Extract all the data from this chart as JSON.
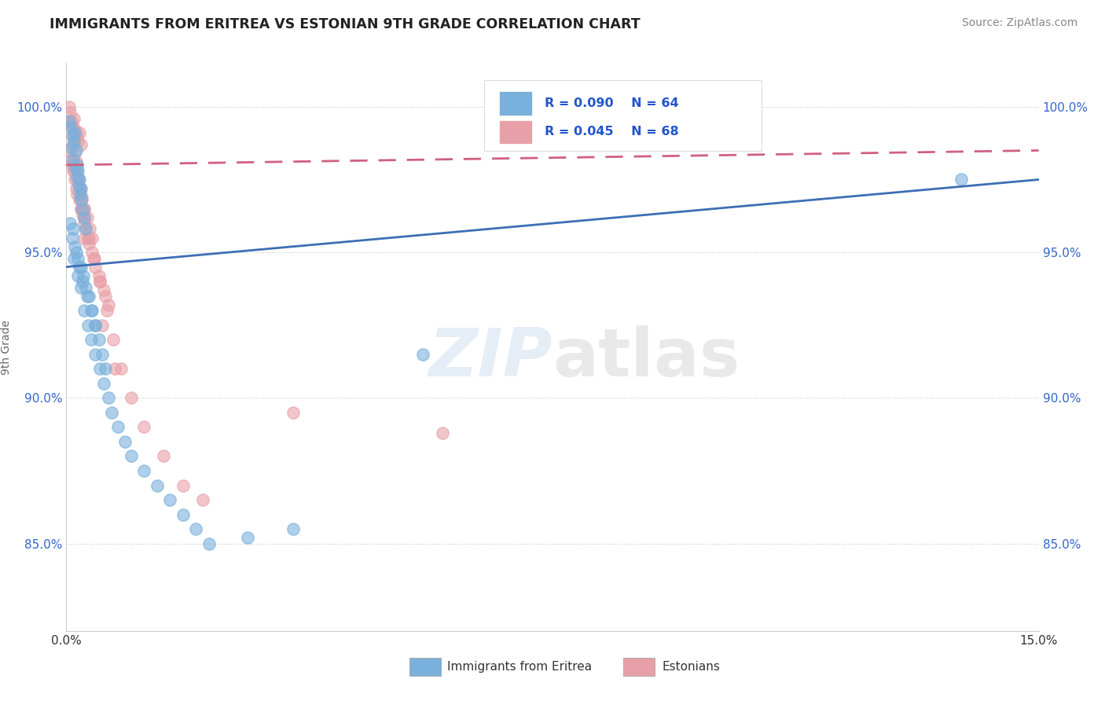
{
  "title": "IMMIGRANTS FROM ERITREA VS ESTONIAN 9TH GRADE CORRELATION CHART",
  "source": "Source: ZipAtlas.com",
  "ylabel": "9th Grade",
  "xlim": [
    0.0,
    15.0
  ],
  "ylim": [
    82.0,
    101.5
  ],
  "ytick_positions": [
    85.0,
    90.0,
    95.0,
    100.0
  ],
  "ytick_labels": [
    "85.0%",
    "90.0%",
    "95.0%",
    "100.0%"
  ],
  "xtick_positions": [
    0.0,
    15.0
  ],
  "xtick_labels": [
    "0.0%",
    "15.0%"
  ],
  "blue_color": "#7ab0dc",
  "pink_color": "#e8a0a8",
  "blue_line_color": "#3d6eb5",
  "pink_line_color": "#d06080",
  "legend_label_blue": "Immigrants from Eritrea",
  "legend_label_pink": "Estonians",
  "blue_trend": [
    94.5,
    97.5
  ],
  "pink_trend": [
    98.0,
    98.5
  ],
  "blue_x": [
    0.05,
    0.07,
    0.1,
    0.12,
    0.13,
    0.15,
    0.17,
    0.18,
    0.2,
    0.22,
    0.08,
    0.11,
    0.14,
    0.16,
    0.19,
    0.21,
    0.23,
    0.25,
    0.28,
    0.3,
    0.06,
    0.09,
    0.13,
    0.18,
    0.22,
    0.26,
    0.3,
    0.35,
    0.4,
    0.45,
    0.1,
    0.15,
    0.2,
    0.25,
    0.32,
    0.38,
    0.44,
    0.5,
    0.55,
    0.6,
    0.12,
    0.18,
    0.22,
    0.28,
    0.33,
    0.38,
    0.45,
    0.52,
    0.58,
    0.65,
    0.7,
    0.8,
    0.9,
    1.0,
    1.2,
    1.4,
    1.6,
    1.8,
    2.0,
    2.2,
    2.8,
    3.5,
    5.5,
    13.8
  ],
  "blue_y": [
    99.5,
    99.3,
    99.0,
    98.8,
    99.1,
    98.5,
    98.0,
    97.8,
    97.5,
    97.2,
    98.6,
    98.2,
    97.9,
    97.6,
    97.3,
    97.0,
    96.8,
    96.5,
    96.2,
    95.8,
    96.0,
    95.5,
    95.2,
    94.8,
    94.5,
    94.2,
    93.8,
    93.5,
    93.0,
    92.5,
    95.8,
    95.0,
    94.5,
    94.0,
    93.5,
    93.0,
    92.5,
    92.0,
    91.5,
    91.0,
    94.8,
    94.2,
    93.8,
    93.0,
    92.5,
    92.0,
    91.5,
    91.0,
    90.5,
    90.0,
    89.5,
    89.0,
    88.5,
    88.0,
    87.5,
    87.0,
    86.5,
    86.0,
    85.5,
    85.0,
    85.2,
    85.5,
    91.5,
    97.5
  ],
  "pink_x": [
    0.04,
    0.06,
    0.08,
    0.1,
    0.12,
    0.14,
    0.16,
    0.18,
    0.2,
    0.22,
    0.07,
    0.09,
    0.11,
    0.13,
    0.15,
    0.17,
    0.19,
    0.21,
    0.24,
    0.27,
    0.05,
    0.08,
    0.12,
    0.16,
    0.2,
    0.24,
    0.28,
    0.32,
    0.36,
    0.4,
    0.09,
    0.13,
    0.17,
    0.22,
    0.27,
    0.33,
    0.39,
    0.45,
    0.52,
    0.6,
    0.1,
    0.15,
    0.2,
    0.25,
    0.3,
    0.35,
    0.42,
    0.5,
    0.58,
    0.65,
    0.28,
    0.35,
    0.43,
    0.52,
    0.62,
    0.72,
    0.85,
    1.0,
    1.2,
    1.5,
    1.8,
    2.1,
    3.5,
    5.8,
    0.22,
    0.28,
    0.55,
    0.75
  ],
  "pink_y": [
    100.0,
    99.8,
    99.5,
    99.3,
    99.6,
    99.2,
    99.0,
    98.8,
    99.1,
    98.7,
    99.4,
    99.0,
    98.7,
    98.4,
    98.1,
    97.8,
    97.5,
    97.2,
    96.9,
    96.5,
    98.5,
    98.2,
    97.8,
    97.5,
    97.2,
    96.8,
    96.5,
    96.2,
    95.8,
    95.5,
    98.0,
    97.5,
    97.0,
    96.5,
    96.0,
    95.5,
    95.0,
    94.5,
    94.0,
    93.5,
    97.8,
    97.2,
    96.8,
    96.3,
    95.8,
    95.3,
    94.8,
    94.2,
    93.7,
    93.2,
    96.2,
    95.5,
    94.8,
    94.0,
    93.0,
    92.0,
    91.0,
    90.0,
    89.0,
    88.0,
    87.0,
    86.5,
    89.5,
    88.8,
    96.5,
    95.5,
    92.5,
    91.0
  ]
}
